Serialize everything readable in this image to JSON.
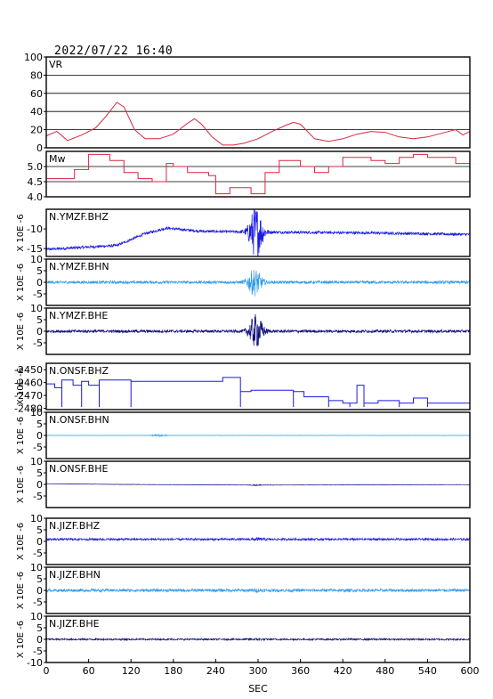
{
  "timestamp": "2022/07/22 16:40",
  "chart_data": {
    "type": "line",
    "x_axis": {
      "label": "SEC",
      "range": [
        0,
        600
      ],
      "ticks": [
        0,
        60,
        120,
        180,
        240,
        300,
        360,
        420,
        480,
        540,
        600
      ]
    },
    "panels": [
      {
        "id": "vr",
        "title": "VR",
        "kind": "vr",
        "color": "#d8263e",
        "ylim": [
          0,
          100
        ],
        "yticks": [
          "0",
          "20",
          "40",
          "60",
          "80",
          "100"
        ],
        "yunit": "",
        "grid": true,
        "x": [
          0,
          15,
          30,
          50,
          70,
          85,
          100,
          110,
          125,
          140,
          160,
          180,
          200,
          210,
          220,
          235,
          250,
          265,
          280,
          300,
          320,
          340,
          350,
          360,
          380,
          400,
          420,
          440,
          460,
          480,
          500,
          520,
          540,
          560,
          580,
          590,
          600
        ],
        "y": [
          13,
          18,
          8,
          14,
          22,
          35,
          50,
          45,
          20,
          10,
          10,
          15,
          27,
          32,
          26,
          12,
          3,
          3,
          5,
          10,
          18,
          25,
          28,
          26,
          10,
          7,
          10,
          15,
          18,
          17,
          12,
          10,
          12,
          16,
          20,
          14,
          18
        ]
      },
      {
        "id": "mw",
        "title": "Mw",
        "kind": "mw",
        "color": "#d8263e",
        "ylim": [
          4.0,
          5.5
        ],
        "yticks": [
          "4.0",
          "4.5",
          "5.0"
        ],
        "yunit": "",
        "grid": true,
        "x": [
          0,
          40,
          60,
          90,
          110,
          130,
          150,
          170,
          180,
          200,
          230,
          240,
          260,
          290,
          310,
          330,
          360,
          380,
          400,
          420,
          440,
          460,
          480,
          500,
          520,
          540,
          560,
          580,
          600
        ],
        "y": [
          4.6,
          4.9,
          5.4,
          5.2,
          4.8,
          4.6,
          4.5,
          5.1,
          5.0,
          4.8,
          4.7,
          4.1,
          4.3,
          4.1,
          4.8,
          5.2,
          5.0,
          4.8,
          5.0,
          5.3,
          5.3,
          5.2,
          5.1,
          5.3,
          5.4,
          5.3,
          5.3,
          5.1,
          5.1
        ]
      },
      {
        "id": "ymzf-bhz",
        "title": "N.YMZF.BHZ",
        "kind": "seis",
        "color": "#1a1ae6",
        "ylim": [
          -17,
          -5
        ],
        "yticks": [
          "-15",
          "-10"
        ],
        "yunit": "X 10E -6",
        "base": [
          [
            0,
            -15.2
          ],
          [
            100,
            -14.2
          ],
          [
            140,
            -11.2
          ],
          [
            170,
            -9.8
          ],
          [
            220,
            -10.6
          ],
          [
            300,
            -10.8
          ],
          [
            450,
            -11.0
          ],
          [
            600,
            -11.4
          ]
        ],
        "noise": 0.35,
        "burst_center": 297,
        "burst_amp": 6.5
      },
      {
        "id": "ymzf-bhn",
        "title": "N.YMZF.BHN",
        "kind": "seis",
        "color": "#2f9be8",
        "ylim": [
          -10,
          10
        ],
        "yticks": [
          "-5",
          "0",
          "5",
          "10"
        ],
        "yunit": "X 10E -6",
        "base": [
          [
            0,
            0
          ],
          [
            600,
            0
          ]
        ],
        "noise": 0.6,
        "burst_center": 295,
        "burst_amp": 5.5
      },
      {
        "id": "ymzf-bhe",
        "title": "N.YMZF.BHE",
        "kind": "seis",
        "color": "#10107a",
        "ylim": [
          -10,
          10
        ],
        "yticks": [
          "-5",
          "0",
          "5",
          "10"
        ],
        "yunit": "X 10E -6",
        "base": [
          [
            0,
            0
          ],
          [
            600,
            0
          ]
        ],
        "noise": 0.6,
        "burst_center": 297,
        "burst_amp": 7.0
      },
      {
        "id": "onsf-bhz",
        "title": "N.ONSF.BHZ",
        "kind": "steps",
        "color": "#1a1ae6",
        "ylim": [
          -2481,
          -2445
        ],
        "yticks": [
          "-2480",
          "-2470",
          "-2460",
          "-2450"
        ],
        "yunit": "X 10E -6",
        "x": [
          0,
          12,
          22,
          38,
          50,
          60,
          75,
          80,
          120,
          250,
          275,
          290,
          350,
          365,
          400,
          420,
          430,
          440,
          450,
          470,
          500,
          520,
          540,
          560,
          600
        ],
        "y": [
          -2461,
          -2464,
          -2458,
          -2462,
          -2459,
          -2462,
          -2458,
          -2458,
          -2459,
          -2456,
          -2467,
          -2466,
          -2467,
          -2471,
          -2474,
          -2476,
          -2476,
          -2462,
          -2476,
          -2474,
          -2476,
          -2472,
          -2476,
          -2476,
          -2477
        ]
      },
      {
        "id": "onsf-bhn",
        "title": "N.ONSF.BHN",
        "kind": "seis",
        "color": "#2f9be8",
        "ylim": [
          -10,
          10
        ],
        "yticks": [
          "-5",
          "0",
          "5",
          "10"
        ],
        "yunit": "X 10E -6",
        "base": [
          [
            0,
            0
          ],
          [
            600,
            0
          ]
        ],
        "noise": 0.05,
        "burst_center": 160,
        "burst_amp": 0.4
      },
      {
        "id": "onsf-bhe",
        "title": "N.ONSF.BHE",
        "kind": "seis",
        "color": "#10107a",
        "ylim": [
          -10,
          10
        ],
        "yticks": [
          "-5",
          "0",
          "5",
          "10"
        ],
        "yunit": "X 10E -6",
        "base": [
          [
            0,
            0.3
          ],
          [
            100,
            0
          ],
          [
            300,
            -0.3
          ],
          [
            600,
            -0.1
          ]
        ],
        "noise": 0.06,
        "burst_center": 300,
        "burst_amp": 0.2
      },
      {
        "id": "jizf-bhz",
        "title": "N.JIZF.BHZ",
        "kind": "seis",
        "color": "#1a1ae6",
        "ylim": [
          -10,
          10
        ],
        "yticks": [
          "-5",
          "0",
          "5",
          "10"
        ],
        "yunit": "X 10E -6",
        "base": [
          [
            0,
            0.9
          ],
          [
            600,
            0.9
          ]
        ],
        "noise": 0.45,
        "burst_center": 300,
        "burst_amp": 0.3
      },
      {
        "id": "jizf-bhn",
        "title": "N.JIZF.BHN",
        "kind": "seis",
        "color": "#2f9be8",
        "ylim": [
          -10,
          10
        ],
        "yticks": [
          "-5",
          "0",
          "5",
          "10"
        ],
        "yunit": "X 10E -6",
        "base": [
          [
            0,
            0
          ],
          [
            600,
            0
          ]
        ],
        "noise": 0.6,
        "burst_center": 300,
        "burst_amp": 0.3
      },
      {
        "id": "jizf-bhe",
        "title": "N.JIZF.BHE",
        "kind": "seis",
        "color": "#10107a",
        "ylim": [
          -10,
          10
        ],
        "yticks": [
          "-10",
          "-5",
          "0",
          "5",
          "10"
        ],
        "yunit": "X 10E -6",
        "base": [
          [
            0,
            0
          ],
          [
            600,
            0
          ]
        ],
        "noise": 0.35,
        "burst_center": 300,
        "burst_amp": 0.2
      }
    ]
  }
}
